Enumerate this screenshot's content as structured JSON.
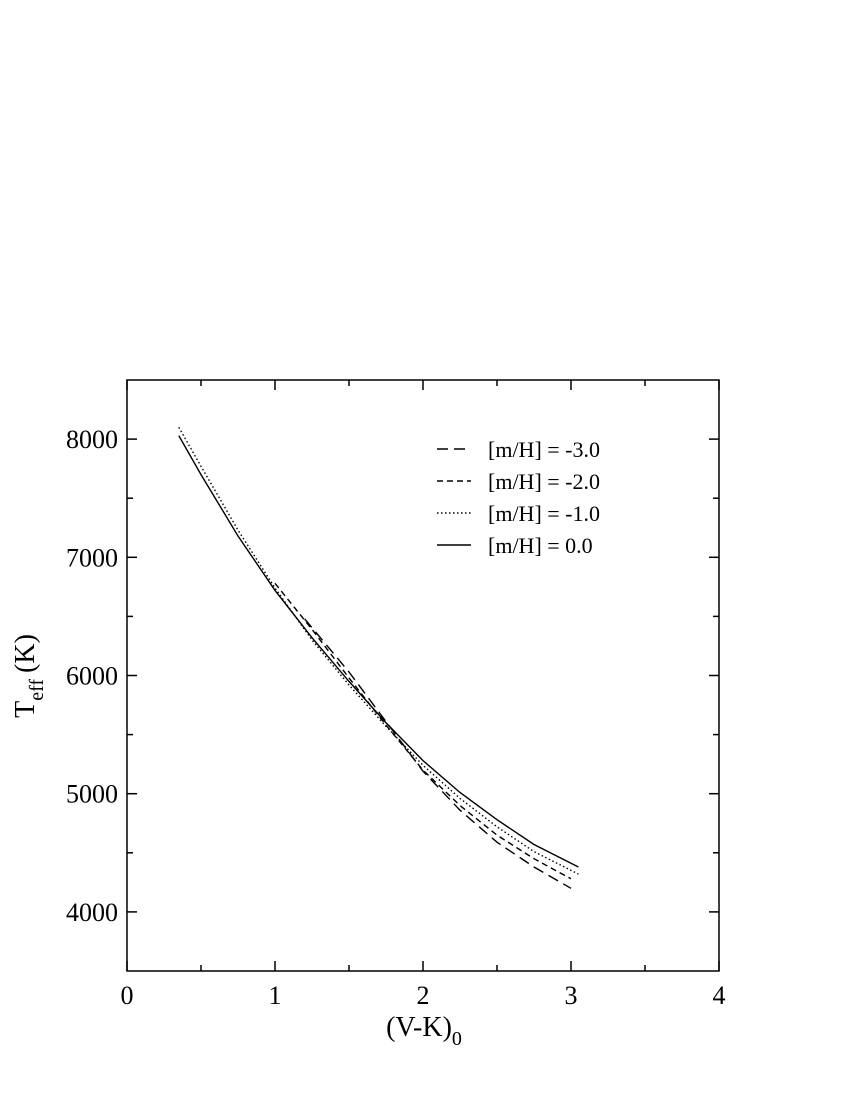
{
  "chart_data": {
    "type": "line",
    "xlabel": "(V-K)",
    "xlabel_sub": "0",
    "ylabel": "T",
    "ylabel_sub": "eff",
    "ylabel_suffix": "(K)",
    "xlim": [
      0,
      4
    ],
    "xticks": [
      0,
      1,
      2,
      3,
      4
    ],
    "xminorticks": [
      0.5,
      1.5,
      2.5,
      3.5
    ],
    "ylim": [
      3500,
      8500
    ],
    "yticks": [
      4000,
      5000,
      6000,
      7000,
      8000
    ],
    "yminorticks": [
      4500,
      5500,
      6500,
      7500
    ],
    "legend": "upper-right",
    "series": [
      {
        "name": "[m/H] = -3.0",
        "color": "#000000",
        "dash": "11 6",
        "x": [
          1.2,
          1.5,
          1.75,
          2.0,
          2.25,
          2.5,
          2.75,
          3.0
        ],
        "values": [
          6480,
          6030,
          5610,
          5190,
          4860,
          4590,
          4380,
          4200
        ]
      },
      {
        "name": "[m/H] = -2.0",
        "color": "#000000",
        "dash": "6 4",
        "x": [
          1.0,
          1.25,
          1.5,
          1.75,
          2.0,
          2.25,
          2.5,
          2.75,
          3.0
        ],
        "values": [
          6780,
          6390,
          5980,
          5580,
          5200,
          4900,
          4650,
          4450,
          4280
        ]
      },
      {
        "name": "[m/H] = -1.0",
        "color": "#000000",
        "dash": "1.5 2.5",
        "x": [
          0.35,
          0.5,
          0.75,
          1.0,
          1.25,
          1.5,
          1.75,
          2.0,
          2.25,
          2.5,
          2.75,
          3.05
        ],
        "values": [
          8100,
          7770,
          7230,
          6740,
          6300,
          5920,
          5570,
          5240,
          4960,
          4720,
          4510,
          4320
        ]
      },
      {
        "name": "[m/H] = 0.0",
        "color": "#000000",
        "dash": "none",
        "x": [
          0.35,
          0.5,
          0.75,
          1.0,
          1.25,
          1.5,
          1.75,
          2.0,
          2.25,
          2.5,
          2.75,
          3.05
        ],
        "values": [
          8030,
          7700,
          7180,
          6720,
          6320,
          5950,
          5600,
          5280,
          5010,
          4780,
          4570,
          4380
        ]
      }
    ]
  }
}
